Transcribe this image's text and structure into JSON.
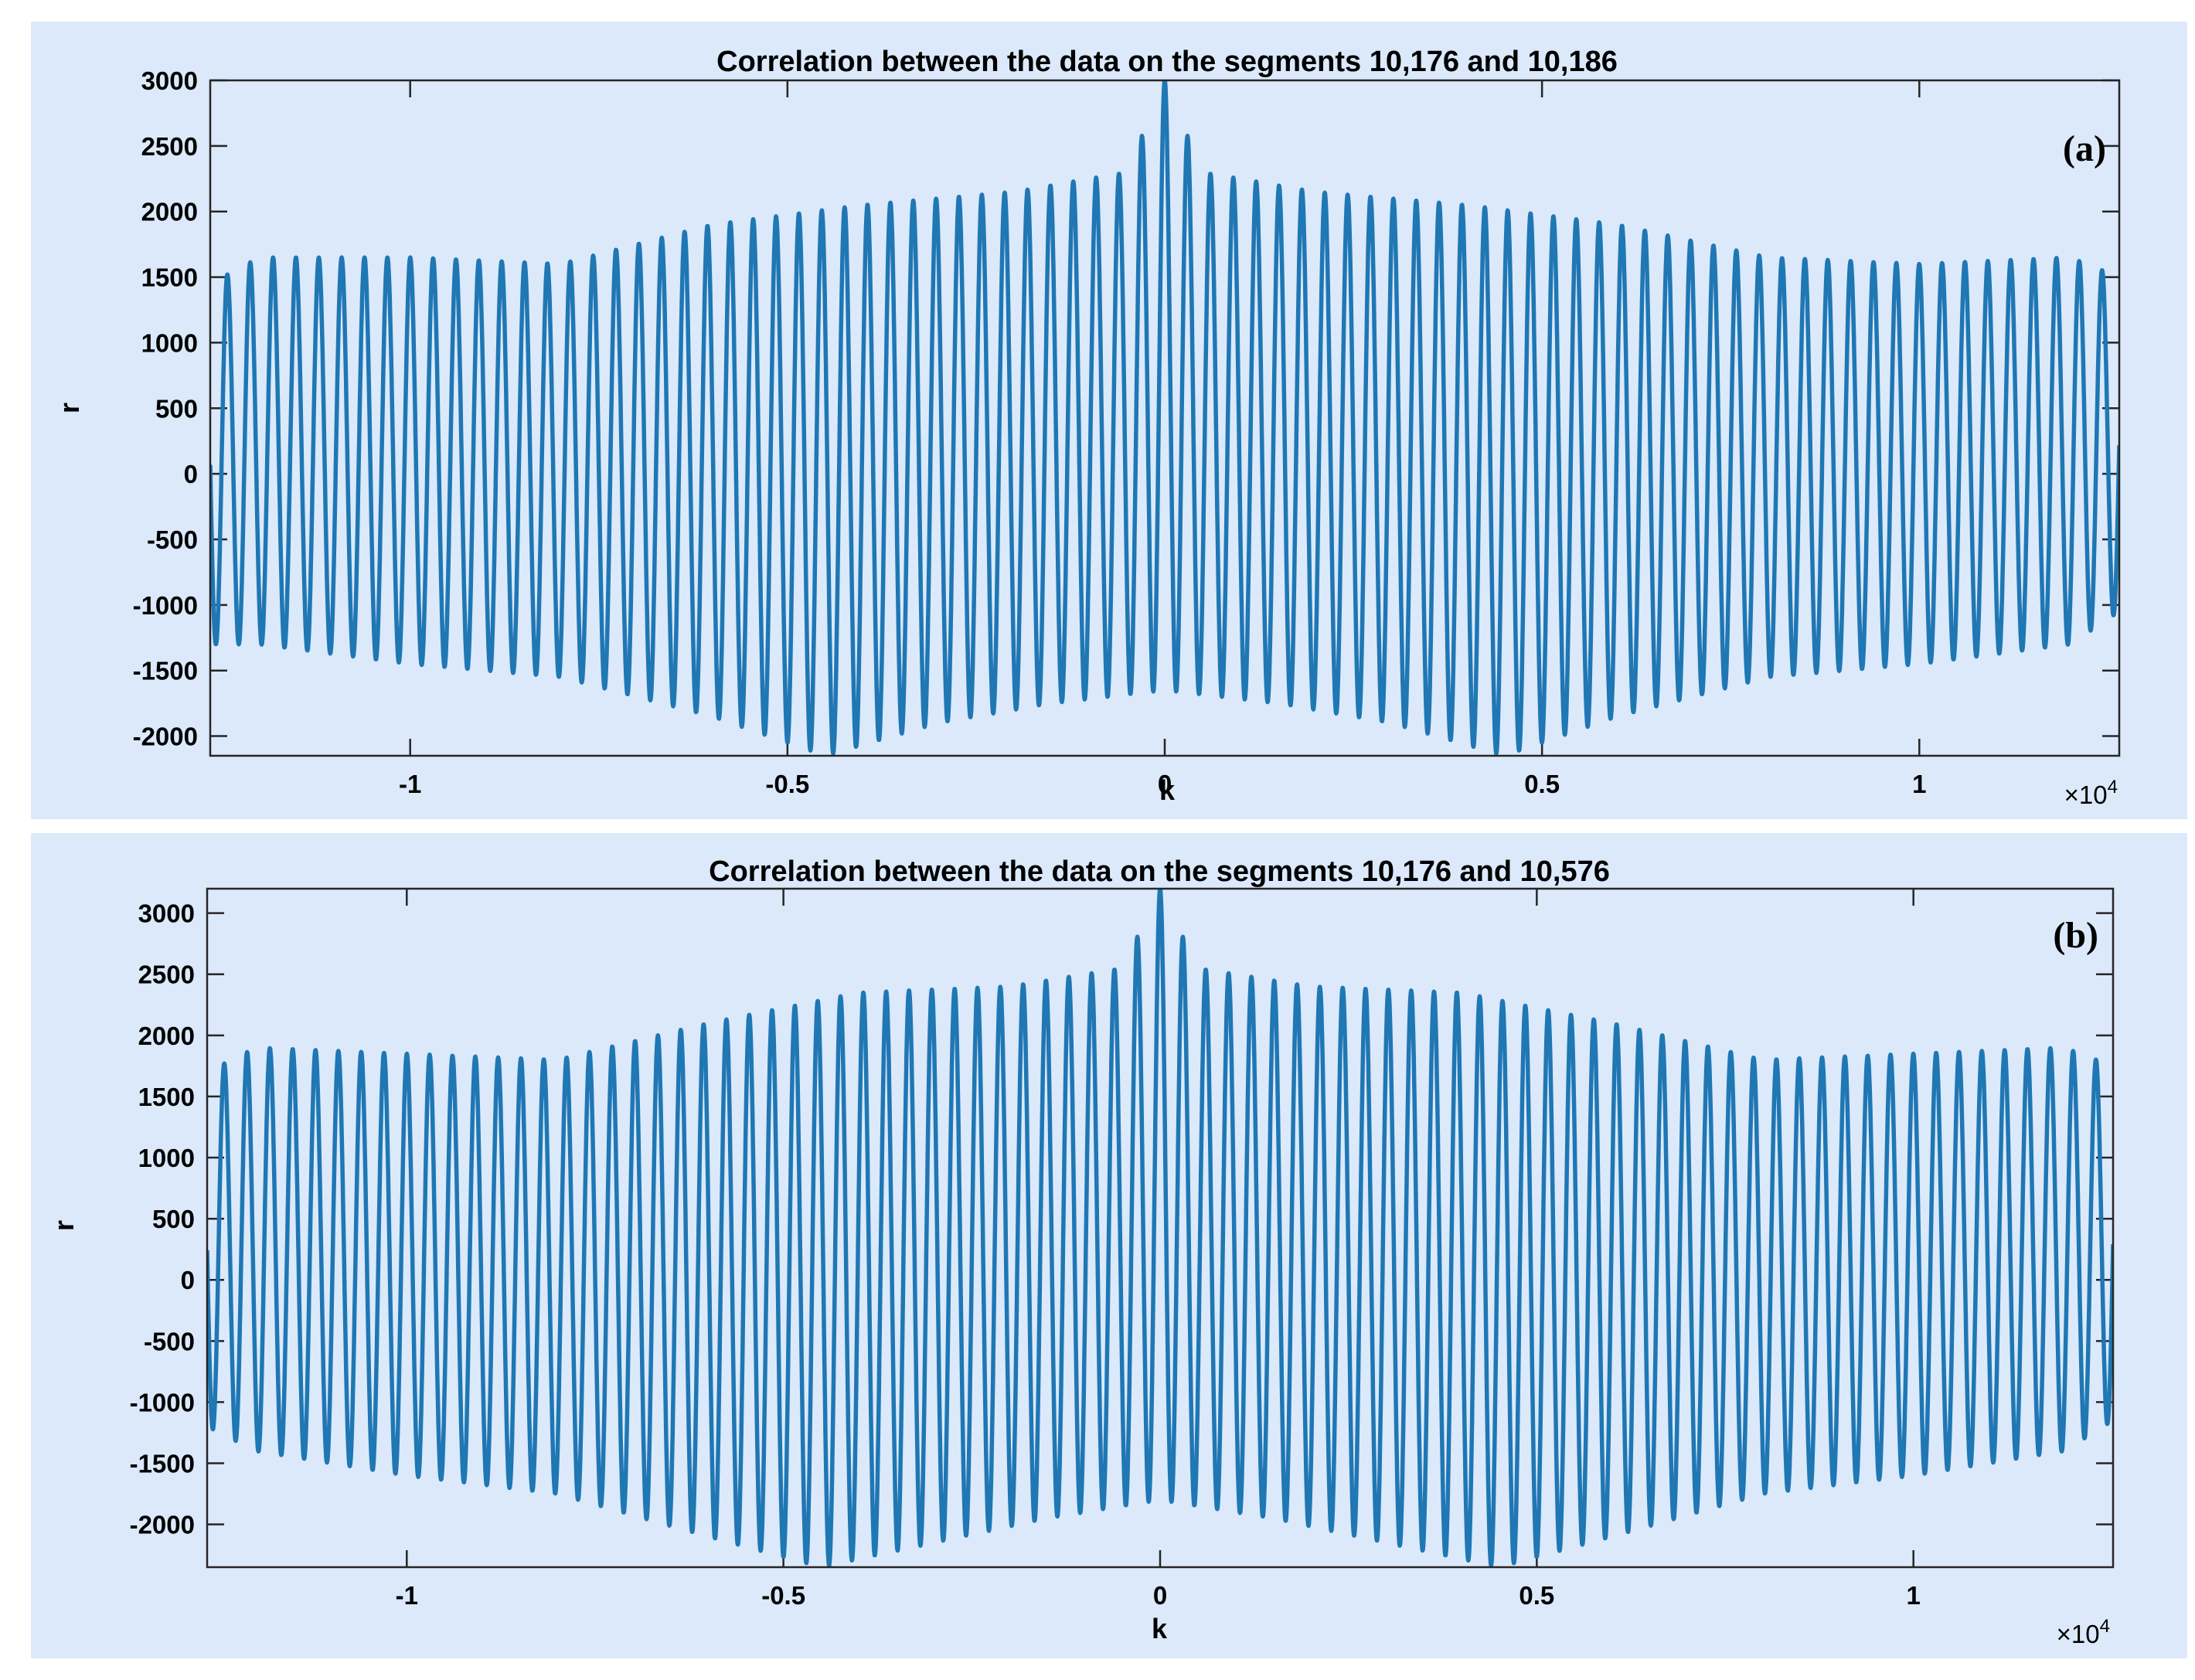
{
  "chart_data": [
    {
      "type": "line",
      "panel_label": "(a)",
      "title": "Correlation between the data on the segments 10,176 and 10,186",
      "xlabel": "k",
      "ylabel": "r",
      "x_multiplier": "×10",
      "x_multiplier_exp": "4",
      "xlim": [
        -1.265,
        1.265
      ],
      "ylim": [
        -2150,
        3000
      ],
      "xticks": [
        -1,
        -0.5,
        0,
        0.5,
        1
      ],
      "xtick_labels": [
        "-1",
        "-0.5",
        "0",
        "0.5",
        "1"
      ],
      "yticks": [
        3000,
        2500,
        2000,
        1500,
        1000,
        500,
        0,
        -500,
        -1000,
        -1500,
        -2000
      ],
      "ytick_labels": [
        "3000",
        "2500",
        "2000",
        "1500",
        "1000",
        "500",
        "0",
        "-500",
        "-1000",
        "-1500",
        "-2000"
      ],
      "color": "#1f77b4",
      "series": [
        {
          "name": "r",
          "period": 0.0303,
          "peak_x": 0,
          "peak_value": 3000,
          "start_value": 550,
          "end_value": -550,
          "upper_envelope": [
            [
              -1.265,
              1450
            ],
            [
              -1.2,
              1650
            ],
            [
              -1.0,
              1650
            ],
            [
              -0.8,
              1600
            ],
            [
              -0.6,
              1900
            ],
            [
              -0.4,
              2050
            ],
            [
              -0.2,
              2150
            ],
            [
              -0.05,
              2300
            ],
            [
              0,
              3000
            ],
            [
              0.05,
              2300
            ],
            [
              0.2,
              2150
            ],
            [
              0.4,
              2050
            ],
            [
              0.6,
              1900
            ],
            [
              0.8,
              1650
            ],
            [
              1.0,
              1600
            ],
            [
              1.2,
              1650
            ],
            [
              1.265,
              1500
            ]
          ],
          "lower_envelope": [
            [
              -1.265,
              -1300
            ],
            [
              -1.2,
              -1300
            ],
            [
              -1.0,
              -1450
            ],
            [
              -0.8,
              -1550
            ],
            [
              -0.6,
              -1850
            ],
            [
              -0.45,
              -2150
            ],
            [
              -0.3,
              -1900
            ],
            [
              -0.15,
              -1750
            ],
            [
              0,
              -1650
            ],
            [
              0.15,
              -1750
            ],
            [
              0.3,
              -1900
            ],
            [
              0.45,
              -2150
            ],
            [
              0.6,
              -1850
            ],
            [
              0.8,
              -1550
            ],
            [
              1.0,
              -1450
            ],
            [
              1.2,
              -1300
            ],
            [
              1.265,
              -1050
            ]
          ]
        }
      ]
    },
    {
      "type": "line",
      "panel_label": "(b)",
      "title": "Correlation between the data on the segments 10,176 and 10,576",
      "xlabel": "k",
      "ylabel": "r",
      "x_multiplier": "×10",
      "x_multiplier_exp": "4",
      "xlim": [
        -1.265,
        1.265
      ],
      "ylim": [
        -2350,
        3200
      ],
      "xticks": [
        -1,
        -0.5,
        0,
        0.5,
        1
      ],
      "xtick_labels": [
        "-1",
        "-0.5",
        "0",
        "0.5",
        "1"
      ],
      "yticks": [
        3000,
        2500,
        2000,
        1500,
        1000,
        500,
        0,
        -500,
        -1000,
        -1500,
        -2000
      ],
      "ytick_labels": [
        "3000",
        "2500",
        "2000",
        "1500",
        "1000",
        "500",
        "0",
        "-500",
        "-1000",
        "-1500",
        "-2000"
      ],
      "color": "#1f77b4",
      "series": [
        {
          "name": "r",
          "period": 0.0303,
          "peak_x": 0,
          "peak_value": 3200,
          "start_value": 600,
          "end_value": -600,
          "upper_envelope": [
            [
              -1.265,
              1700
            ],
            [
              -1.2,
              1900
            ],
            [
              -1.0,
              1850
            ],
            [
              -0.8,
              1800
            ],
            [
              -0.6,
              2100
            ],
            [
              -0.4,
              2350
            ],
            [
              -0.2,
              2400
            ],
            [
              -0.05,
              2550
            ],
            [
              0,
              3200
            ],
            [
              0.05,
              2550
            ],
            [
              0.2,
              2400
            ],
            [
              0.4,
              2350
            ],
            [
              0.6,
              2100
            ],
            [
              0.8,
              1800
            ],
            [
              1.0,
              1850
            ],
            [
              1.2,
              1900
            ],
            [
              1.265,
              1750
            ]
          ],
          "lower_envelope": [
            [
              -1.265,
              -1200
            ],
            [
              -1.2,
              -1400
            ],
            [
              -1.0,
              -1600
            ],
            [
              -0.8,
              -1750
            ],
            [
              -0.6,
              -2100
            ],
            [
              -0.45,
              -2350
            ],
            [
              -0.3,
              -2150
            ],
            [
              -0.15,
              -1950
            ],
            [
              0,
              -1800
            ],
            [
              0.15,
              -1950
            ],
            [
              0.3,
              -2150
            ],
            [
              0.45,
              -2350
            ],
            [
              0.6,
              -2100
            ],
            [
              0.8,
              -1750
            ],
            [
              1.0,
              -1600
            ],
            [
              1.2,
              -1400
            ],
            [
              1.265,
              -1150
            ]
          ]
        }
      ]
    }
  ]
}
